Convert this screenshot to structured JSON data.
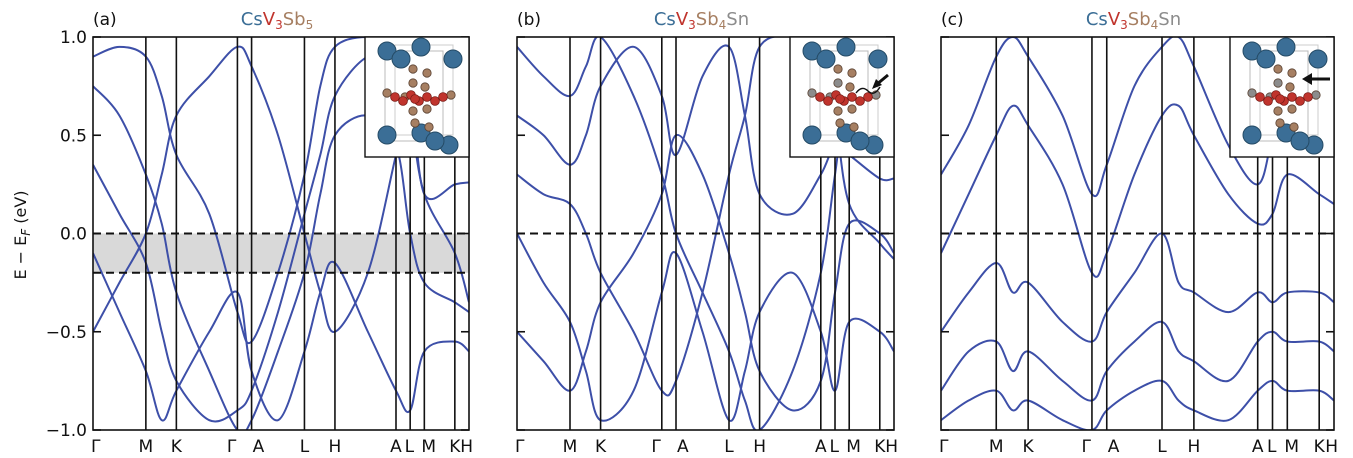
{
  "figure": {
    "ylabel_main": "E − E",
    "ylabel_sub": "F",
    "ylabel_unit": " (eV)"
  },
  "colors": {
    "band": "#3d4fa8",
    "cs": "#3b6e96",
    "v": "#c0342d",
    "sb": "#a67f62",
    "sn": "#8c8c8c",
    "shade": "#d9d9d9"
  },
  "chart_data": [
    {
      "type": "line",
      "panel_label": "(a)",
      "title_parts": [
        {
          "text": "Cs",
          "color": "cs",
          "sub": false
        },
        {
          "text": "V",
          "color": "v",
          "sub": false
        },
        {
          "text": "3",
          "color": "v",
          "sub": true
        },
        {
          "text": "Sb",
          "color": "sb",
          "sub": false
        },
        {
          "text": "5",
          "color": "sb",
          "sub": true
        }
      ],
      "ylim": [
        -1.0,
        1.0
      ],
      "yticks": [
        "1.0",
        "0.5",
        "0.0",
        "−0.5",
        "−1.0"
      ],
      "ytick_values": [
        1.0,
        0.5,
        0.0,
        -0.5,
        -1.0
      ],
      "kpath": [
        "Γ",
        "M",
        "K",
        "Γ",
        "A",
        "L",
        "H",
        "A",
        "L",
        "M",
        "K",
        "H"
      ],
      "kpos": [
        0,
        1,
        1.577,
        2.732,
        3.0,
        4.0,
        4.577,
        5.732,
        6.0,
        6.268,
        6.845,
        7.113
      ],
      "fermi_dashed": [
        0.0,
        -0.2
      ],
      "shaded_range": [
        -0.2,
        0.0
      ],
      "inset_marker": "none",
      "series": [
        {
          "x": [
            0,
            0.5,
            1,
            1.3,
            1.577,
            2.2,
            2.732,
            3.0,
            3.5,
            4.0,
            4.3,
            4.577,
            5.2,
            5.732,
            6.0,
            6.268,
            6.845,
            7.113
          ],
          "y": [
            -0.5,
            -0.25,
            0.0,
            0.3,
            0.6,
            0.8,
            0.95,
            0.85,
            0.5,
            0.0,
            -0.3,
            -0.5,
            -0.2,
            0.4,
            0.7,
            0.2,
            0.25,
            0.26
          ]
        },
        {
          "x": [
            0,
            0.5,
            1,
            1.3,
            1.577,
            2.2,
            2.732,
            3.0,
            3.5,
            4.0,
            4.3,
            4.577,
            5.2,
            5.732,
            6.0,
            6.268,
            6.845,
            7.113
          ],
          "y": [
            0.35,
            0.1,
            -0.15,
            -0.5,
            -0.75,
            -0.95,
            -0.9,
            -0.8,
            -0.4,
            0.1,
            0.4,
            0.7,
            0.9,
            0.85,
            0.6,
            0.2,
            -0.1,
            -0.35
          ]
        },
        {
          "x": [
            0,
            0.5,
            1,
            1.3,
            1.577,
            2.2,
            2.732,
            3.0,
            3.5,
            4.0,
            4.3,
            4.577,
            5.2,
            5.732,
            6.0,
            6.268,
            6.845,
            7.113
          ],
          "y": [
            0.75,
            0.6,
            0.3,
            0.05,
            -0.3,
            -0.7,
            -1.0,
            -0.95,
            -0.6,
            -0.2,
            0.2,
            0.5,
            0.6,
            0.45,
            0.0,
            -0.25,
            -0.35,
            -0.4
          ]
        },
        {
          "x": [
            0,
            0.5,
            1,
            1.3,
            1.577,
            2.2,
            2.732,
            3.0,
            3.5,
            4.0,
            4.3,
            4.577,
            5.2,
            5.732,
            6.0,
            6.268,
            6.845,
            7.113
          ],
          "y": [
            0.9,
            0.95,
            0.9,
            0.7,
            0.4,
            0.1,
            -0.4,
            -0.55,
            -0.2,
            0.3,
            0.75,
            0.95,
            1.0,
            0.95,
            0.9,
            0.6,
            0.5,
            0.4
          ]
        },
        {
          "x": [
            0,
            0.5,
            1,
            1.3,
            1.577,
            2.2,
            2.732,
            3.0,
            3.5,
            4.0,
            4.3,
            4.577,
            5.2,
            5.732,
            6.0,
            6.268,
            6.845,
            7.113
          ],
          "y": [
            -0.1,
            -0.4,
            -0.7,
            -0.95,
            -0.8,
            -0.5,
            -0.3,
            -0.7,
            -0.95,
            -0.6,
            -0.3,
            -0.15,
            -0.5,
            -0.8,
            -0.9,
            -0.6,
            -0.55,
            -0.6
          ]
        }
      ]
    },
    {
      "type": "line",
      "panel_label": "(b)",
      "title_parts": [
        {
          "text": "Cs",
          "color": "cs",
          "sub": false
        },
        {
          "text": "V",
          "color": "v",
          "sub": false
        },
        {
          "text": "3",
          "color": "v",
          "sub": true
        },
        {
          "text": "Sb",
          "color": "sb",
          "sub": false
        },
        {
          "text": "4",
          "color": "sb",
          "sub": true
        },
        {
          "text": "Sn",
          "color": "sn",
          "sub": false
        }
      ],
      "ylim": [
        -1.0,
        1.0
      ],
      "kpath": [
        "Γ",
        "M",
        "K",
        "Γ",
        "A",
        "L",
        "H",
        "A",
        "L",
        "M",
        "K",
        "H"
      ],
      "kpos": [
        0,
        1,
        1.577,
        2.732,
        3.0,
        4.0,
        4.577,
        5.732,
        6.0,
        6.268,
        6.845,
        7.113
      ],
      "fermi_dashed": [
        0.0
      ],
      "inset_marker": "curly-arrow",
      "series": [
        {
          "x": [
            0,
            0.5,
            1,
            1.3,
            1.577,
            2.2,
            2.732,
            3.0,
            3.5,
            4.0,
            4.3,
            4.577,
            5.2,
            5.732,
            6.0,
            6.268,
            6.845,
            7.113
          ],
          "y": [
            0.6,
            0.5,
            0.35,
            0.5,
            0.75,
            0.95,
            0.7,
            0.4,
            0.8,
            0.95,
            0.6,
            0.2,
            0.1,
            0.3,
            0.45,
            0.4,
            0.28,
            0.28
          ]
        },
        {
          "x": [
            0,
            0.5,
            1,
            1.3,
            1.577,
            2.2,
            2.732,
            3.0,
            3.5,
            4.0,
            4.3,
            4.577,
            5.2,
            5.732,
            6.0,
            6.268,
            6.845,
            7.113
          ],
          "y": [
            0.3,
            0.2,
            0.15,
            0.0,
            -0.2,
            -0.5,
            -0.8,
            -0.75,
            -0.3,
            0.3,
            0.6,
            0.95,
            1.0,
            0.9,
            0.6,
            0.15,
            -0.05,
            -0.13
          ]
        },
        {
          "x": [
            0,
            0.5,
            1,
            1.3,
            1.577,
            2.2,
            2.732,
            3.0,
            3.5,
            4.0,
            4.3,
            4.577,
            5.2,
            5.732,
            6.0,
            6.268,
            6.845,
            7.113
          ],
          "y": [
            0.0,
            -0.25,
            -0.45,
            -0.7,
            -0.95,
            -0.8,
            -0.3,
            -0.1,
            -0.5,
            -0.95,
            -0.7,
            -0.4,
            -0.2,
            -0.5,
            -0.8,
            -0.45,
            -0.5,
            -0.6
          ]
        },
        {
          "x": [
            0,
            0.5,
            1,
            1.3,
            1.577,
            2.2,
            2.732,
            3.0,
            3.5,
            4.0,
            4.3,
            4.577,
            5.2,
            5.732,
            6.0,
            6.268,
            6.845,
            7.113
          ],
          "y": [
            -0.5,
            -0.65,
            -0.8,
            -0.6,
            -0.35,
            -0.1,
            0.2,
            0.5,
            0.3,
            -0.1,
            -0.4,
            -0.7,
            -0.9,
            -0.75,
            -0.3,
            0.05,
            0.0,
            -0.1
          ]
        },
        {
          "x": [
            0,
            0.5,
            1,
            1.3,
            1.577,
            2.2,
            2.732,
            3.0,
            3.5,
            4.0,
            4.3,
            4.577,
            5.2,
            5.732,
            6.0,
            6.268,
            6.845,
            7.113
          ],
          "y": [
            0.95,
            0.8,
            0.7,
            0.85,
            1.0,
            0.7,
            0.3,
            0.0,
            -0.3,
            -0.6,
            -0.85,
            -1.0,
            -0.7,
            -0.2,
            0.3,
            0.75,
            0.8,
            0.85
          ]
        }
      ]
    },
    {
      "type": "line",
      "panel_label": "(c)",
      "title_parts": [
        {
          "text": "Cs",
          "color": "cs",
          "sub": false
        },
        {
          "text": "V",
          "color": "v",
          "sub": false
        },
        {
          "text": "3",
          "color": "v",
          "sub": true
        },
        {
          "text": "Sb",
          "color": "sb",
          "sub": false
        },
        {
          "text": "4",
          "color": "sb",
          "sub": true
        },
        {
          "text": "Sn",
          "color": "sn",
          "sub": false
        }
      ],
      "ylim": [
        -1.0,
        1.0
      ],
      "kpath": [
        "Γ",
        "M",
        "K",
        "Γ",
        "A",
        "L",
        "H",
        "A",
        "L",
        "M",
        "K",
        "H"
      ],
      "kpos": [
        0,
        1,
        1.577,
        2.732,
        3.0,
        4.0,
        4.577,
        5.732,
        6.0,
        6.268,
        6.845,
        7.113
      ],
      "fermi_dashed": [
        0.0
      ],
      "inset_marker": "arrow",
      "series": [
        {
          "x": [
            0,
            0.5,
            1,
            1.3,
            1.577,
            2.2,
            2.732,
            3.0,
            3.5,
            4.0,
            4.3,
            4.577,
            5.2,
            5.732,
            6.0,
            6.268,
            6.845,
            7.113
          ],
          "y": [
            -0.1,
            0.2,
            0.5,
            0.65,
            0.55,
            0.25,
            -0.2,
            -0.1,
            0.3,
            0.6,
            0.65,
            0.5,
            0.2,
            0.05,
            0.1,
            0.3,
            0.2,
            0.15
          ]
        },
        {
          "x": [
            0,
            0.5,
            1,
            1.3,
            1.577,
            2.2,
            2.732,
            3.0,
            3.5,
            4.0,
            4.3,
            4.577,
            5.2,
            5.732,
            6.0,
            6.268,
            6.845,
            7.113
          ],
          "y": [
            -0.5,
            -0.3,
            -0.15,
            -0.3,
            -0.25,
            -0.45,
            -0.55,
            -0.4,
            -0.2,
            0.0,
            -0.25,
            -0.3,
            -0.4,
            -0.3,
            -0.35,
            -0.3,
            -0.3,
            -0.35
          ]
        },
        {
          "x": [
            0,
            0.5,
            1,
            1.3,
            1.577,
            2.2,
            2.732,
            3.0,
            3.5,
            4.0,
            4.3,
            4.577,
            5.2,
            5.732,
            6.0,
            6.268,
            6.845,
            7.113
          ],
          "y": [
            -0.8,
            -0.6,
            -0.55,
            -0.7,
            -0.6,
            -0.75,
            -0.85,
            -0.7,
            -0.55,
            -0.45,
            -0.6,
            -0.65,
            -0.75,
            -0.55,
            -0.5,
            -0.55,
            -0.55,
            -0.6
          ]
        },
        {
          "x": [
            0,
            0.5,
            1,
            1.3,
            1.577,
            2.2,
            2.732,
            3.0,
            3.5,
            4.0,
            4.3,
            4.577,
            5.2,
            5.732,
            6.0,
            6.268,
            6.845,
            7.113
          ],
          "y": [
            0.3,
            0.55,
            0.9,
            1.0,
            0.9,
            0.6,
            0.2,
            0.35,
            0.75,
            0.95,
            1.0,
            0.85,
            0.45,
            0.25,
            0.5,
            0.8,
            0.55,
            0.5
          ]
        },
        {
          "x": [
            0,
            0.5,
            1,
            1.3,
            1.577,
            2.2,
            2.732,
            3.0,
            3.5,
            4.0,
            4.3,
            4.577,
            5.2,
            5.732,
            6.0,
            6.268,
            6.845,
            7.113
          ],
          "y": [
            -0.95,
            -0.85,
            -0.8,
            -0.9,
            -0.85,
            -0.95,
            -1.0,
            -0.9,
            -0.8,
            -0.75,
            -0.85,
            -0.9,
            -0.95,
            -0.8,
            -0.75,
            -0.8,
            -0.8,
            -0.85
          ]
        }
      ]
    }
  ]
}
